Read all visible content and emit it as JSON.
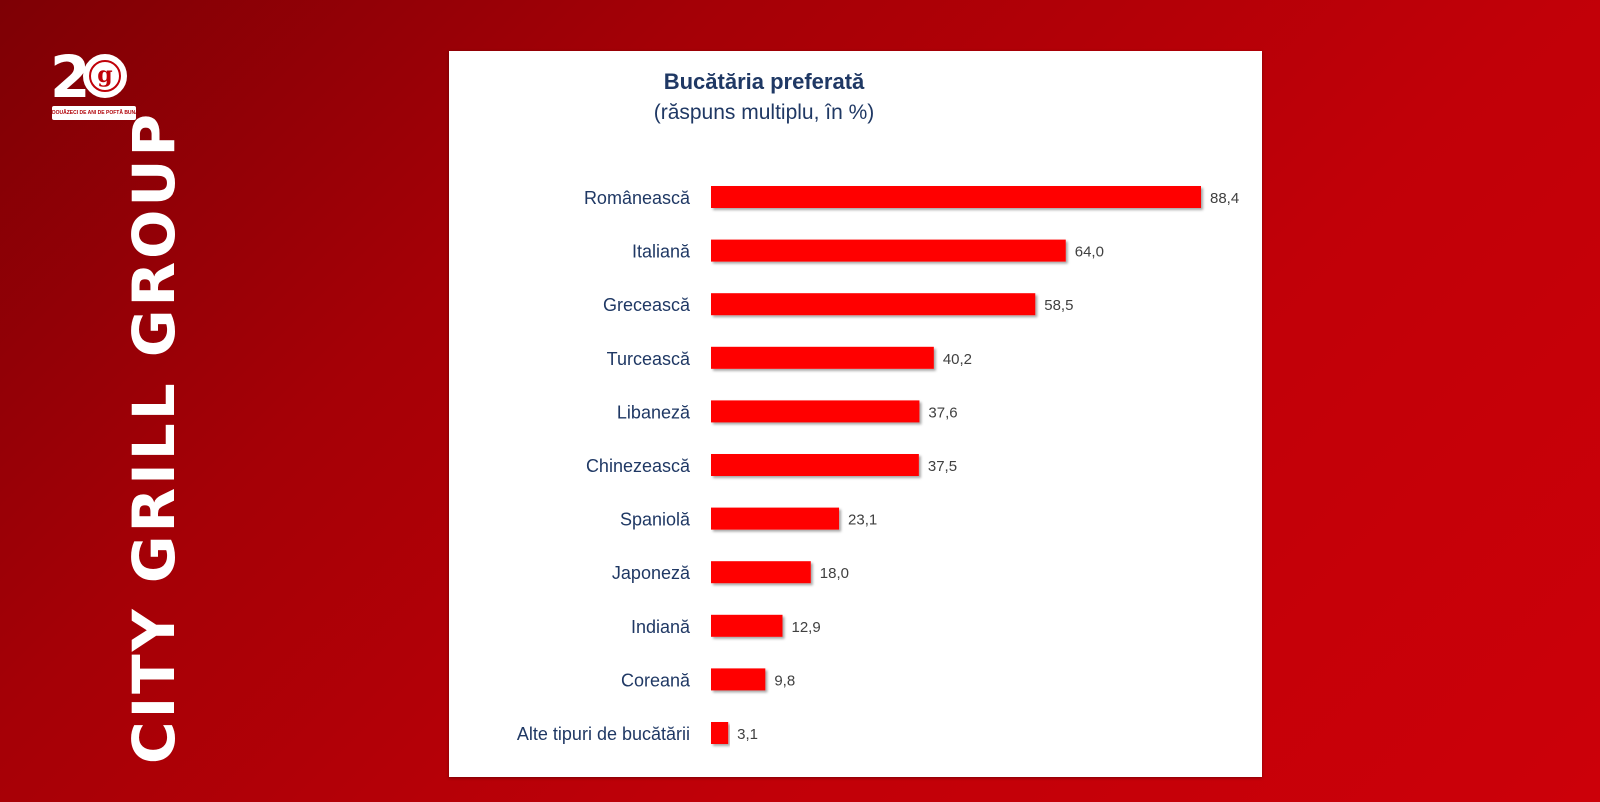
{
  "brand": {
    "name": "CITY GRILL GROUP",
    "logo_number": "2",
    "logo_letter": "g",
    "logo_ribbon": "DOUĂZECI DE ANI DE POFTĂ BUNĂ"
  },
  "colors": {
    "background": "#b00007",
    "bar": "#ff0000",
    "title": "#1f3864",
    "label": "#1f3864",
    "value_label": "#404040"
  },
  "chart_data": {
    "type": "bar",
    "orientation": "horizontal",
    "title": "Bucătăria preferată",
    "subtitle": "(răspuns multiplu, în %)",
    "categories": [
      "Românească",
      "Italiană",
      "Grecească",
      "Turcească",
      "Libaneză",
      "Chinezească",
      "Spaniolă",
      "Japoneză",
      "Indiană",
      "Coreană",
      "Alte tipuri de bucătării"
    ],
    "values": [
      88.4,
      64.0,
      58.5,
      40.2,
      37.6,
      37.5,
      23.1,
      18.0,
      12.9,
      9.8,
      3.1
    ],
    "value_labels": [
      "88,4",
      "64,0",
      "58,5",
      "40,2",
      "37,6",
      "37,5",
      "23,1",
      "18,0",
      "12,9",
      "9,8",
      "3,1"
    ],
    "xlim": [
      0,
      88.4
    ],
    "grid": false,
    "legend": "none"
  }
}
